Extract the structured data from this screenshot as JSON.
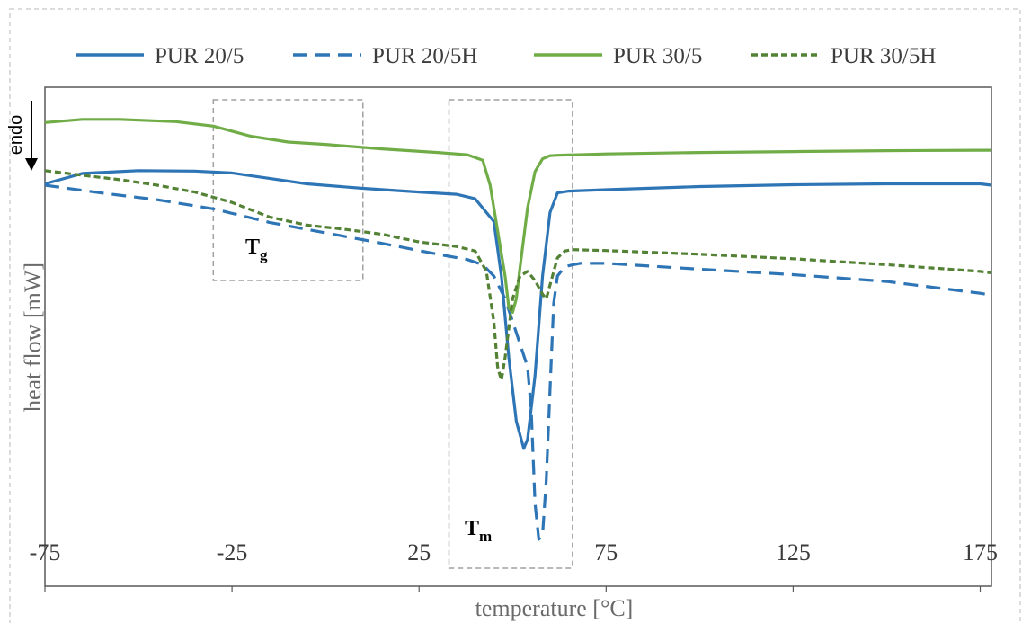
{
  "chart_data": {
    "type": "line",
    "title": "",
    "xlabel": "temperature [°C]",
    "ylabel": "heat flow [mW]",
    "xlim": [
      -75,
      178
    ],
    "ylim": [
      0,
      1
    ],
    "x_ticks": [
      -75,
      -25,
      25,
      75,
      125,
      175
    ],
    "x_tick_labels": [
      "-75",
      "-25",
      "25",
      "75",
      "125",
      "175"
    ],
    "y_ticks_shown": false,
    "grid": false,
    "legend_position": "top",
    "series": [
      {
        "name": "PUR 20/5",
        "color": "#2e75b6",
        "style": "solid",
        "points": [
          [
            -75,
            0.803
          ],
          [
            -65,
            0.826
          ],
          [
            -50,
            0.832
          ],
          [
            -35,
            0.831
          ],
          [
            -25,
            0.827
          ],
          [
            -15,
            0.815
          ],
          [
            -5,
            0.803
          ],
          [
            10,
            0.793
          ],
          [
            25,
            0.785
          ],
          [
            35,
            0.78
          ],
          [
            40,
            0.77
          ],
          [
            45,
            0.72
          ],
          [
            47,
            0.6
          ],
          [
            49,
            0.42
          ],
          [
            51,
            0.28
          ],
          [
            53,
            0.22
          ],
          [
            54,
            0.24
          ],
          [
            56,
            0.38
          ],
          [
            58,
            0.6
          ],
          [
            60,
            0.74
          ],
          [
            62,
            0.783
          ],
          [
            65,
            0.787
          ],
          [
            75,
            0.79
          ],
          [
            100,
            0.797
          ],
          [
            125,
            0.801
          ],
          [
            150,
            0.803
          ],
          [
            175,
            0.803
          ],
          [
            178,
            0.8
          ]
        ]
      },
      {
        "name": "PUR 20/5H",
        "color": "#2e75b6",
        "style": "dash",
        "points": [
          [
            -75,
            0.8
          ],
          [
            -60,
            0.783
          ],
          [
            -45,
            0.768
          ],
          [
            -30,
            0.748
          ],
          [
            -15,
            0.718
          ],
          [
            0,
            0.695
          ],
          [
            15,
            0.672
          ],
          [
            30,
            0.648
          ],
          [
            38,
            0.636
          ],
          [
            42,
            0.625
          ],
          [
            45,
            0.6
          ],
          [
            48,
            0.55
          ],
          [
            50,
            0.5
          ],
          [
            52,
            0.45
          ],
          [
            54,
            0.4
          ],
          [
            55,
            0.3
          ],
          [
            56,
            0.1
          ],
          [
            57,
            0.02
          ],
          [
            58,
            0.03
          ],
          [
            59,
            0.15
          ],
          [
            60,
            0.35
          ],
          [
            61,
            0.54
          ],
          [
            62,
            0.6
          ],
          [
            64,
            0.621
          ],
          [
            68,
            0.628
          ],
          [
            75,
            0.628
          ],
          [
            100,
            0.615
          ],
          [
            125,
            0.603
          ],
          [
            150,
            0.588
          ],
          [
            175,
            0.562
          ],
          [
            178,
            0.558
          ]
        ]
      },
      {
        "name": "PUR 30/5",
        "color": "#70ad47",
        "style": "solid",
        "points": [
          [
            -75,
            0.938
          ],
          [
            -65,
            0.945
          ],
          [
            -55,
            0.945
          ],
          [
            -40,
            0.94
          ],
          [
            -30,
            0.93
          ],
          [
            -20,
            0.908
          ],
          [
            -10,
            0.895
          ],
          [
            0,
            0.89
          ],
          [
            15,
            0.88
          ],
          [
            30,
            0.872
          ],
          [
            38,
            0.867
          ],
          [
            42,
            0.855
          ],
          [
            44,
            0.8
          ],
          [
            46,
            0.7
          ],
          [
            48,
            0.6
          ],
          [
            49,
            0.53
          ],
          [
            50,
            0.52
          ],
          [
            51,
            0.55
          ],
          [
            52,
            0.62
          ],
          [
            54,
            0.75
          ],
          [
            56,
            0.83
          ],
          [
            58,
            0.858
          ],
          [
            60,
            0.865
          ],
          [
            62,
            0.866
          ],
          [
            75,
            0.869
          ],
          [
            100,
            0.872
          ],
          [
            125,
            0.874
          ],
          [
            150,
            0.876
          ],
          [
            175,
            0.877
          ],
          [
            178,
            0.877
          ]
        ]
      },
      {
        "name": "PUR 30/5H",
        "color": "#548235",
        "style": "dot",
        "points": [
          [
            -75,
            0.832
          ],
          [
            -65,
            0.822
          ],
          [
            -55,
            0.812
          ],
          [
            -45,
            0.8
          ],
          [
            -35,
            0.785
          ],
          [
            -25,
            0.762
          ],
          [
            -15,
            0.73
          ],
          [
            -5,
            0.712
          ],
          [
            5,
            0.703
          ],
          [
            15,
            0.692
          ],
          [
            25,
            0.675
          ],
          [
            35,
            0.665
          ],
          [
            40,
            0.655
          ],
          [
            43,
            0.61
          ],
          [
            45,
            0.5
          ],
          [
            46,
            0.4
          ],
          [
            47,
            0.37
          ],
          [
            48,
            0.42
          ],
          [
            50,
            0.55
          ],
          [
            52,
            0.6
          ],
          [
            54,
            0.61
          ],
          [
            56,
            0.59
          ],
          [
            58,
            0.56
          ],
          [
            59,
            0.55
          ],
          [
            60,
            0.58
          ],
          [
            62,
            0.64
          ],
          [
            64,
            0.655
          ],
          [
            66,
            0.658
          ],
          [
            75,
            0.656
          ],
          [
            100,
            0.648
          ],
          [
            125,
            0.638
          ],
          [
            150,
            0.625
          ],
          [
            175,
            0.61
          ],
          [
            178,
            0.607
          ]
        ]
      }
    ],
    "annotations": [
      {
        "label": "T",
        "sub": "g",
        "x_range": [
          -30,
          10
        ]
      },
      {
        "label": "T",
        "sub": "m",
        "x_range": [
          33,
          66
        ]
      }
    ],
    "endo_label": "endo"
  }
}
